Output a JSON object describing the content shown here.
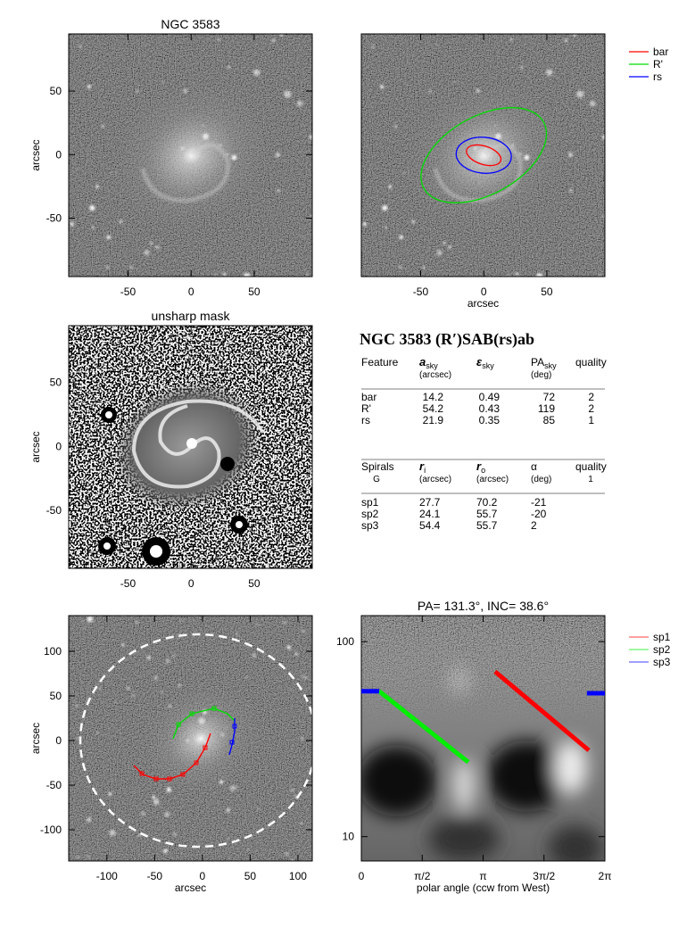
{
  "panels": {
    "top_left": {
      "title": "NGC 3583",
      "ylabel": "arcsec",
      "xlim": [
        -97,
        96
      ],
      "ylim": [
        -96,
        95
      ],
      "xticks": [
        -50,
        0,
        50
      ],
      "yticks": [
        -50,
        0,
        50
      ]
    },
    "top_right": {
      "xlabel": "arcsec",
      "xlim": [
        -97,
        96
      ],
      "xticks": [
        -50,
        0,
        50
      ],
      "legend": [
        {
          "name": "bar",
          "color": "#ff0000"
        },
        {
          "name": "R'",
          "color": "#00dd00"
        },
        {
          "name": "rs",
          "color": "#0000ff"
        }
      ]
    },
    "middle_left": {
      "title": "unsharp mask",
      "ylabel": "arcsec",
      "xlim": [
        -97,
        96
      ],
      "ylim": [
        -95,
        94
      ],
      "xticks": [
        -50,
        0,
        50
      ],
      "yticks": [
        -50,
        0,
        50
      ]
    },
    "bottom_left": {
      "xlabel": "arcsec",
      "ylabel": "arcsec",
      "xlim": [
        -140,
        115
      ],
      "ylim": [
        -135,
        140
      ],
      "xticks": [
        -100,
        -50,
        0,
        50,
        100
      ],
      "yticks": [
        -100,
        -50,
        0,
        50,
        100
      ]
    },
    "bottom_right": {
      "title": "PA= 131.3°, INC=  38.6°",
      "xlabel": "polar angle (ccw from West)",
      "log_y": true,
      "xlim": [
        0,
        6.2832
      ],
      "ylim": [
        7.5,
        136
      ],
      "xticks": [
        0,
        {
          "value": 1.5708,
          "label": "π/2"
        },
        {
          "value": 3.1416,
          "label": "π"
        },
        {
          "value": 4.7124,
          "label": "3π/2"
        },
        {
          "value": 6.2832,
          "label": "2π"
        }
      ],
      "yticks": [
        10,
        100
      ],
      "series": [
        {
          "name": "sp1",
          "color": "#ff0000",
          "theta": [
            3.45,
            5.87
          ],
          "r": [
            70.2,
            27.7
          ]
        },
        {
          "name": "sp2",
          "color": "#00ee00",
          "theta": [
            0.46,
            2.76
          ],
          "r": [
            55.7,
            24.1
          ]
        },
        {
          "name": "sp3",
          "color": "#0000ff",
          "theta": [
            0,
            0.46,
            null,
            5.82,
            6.2832
          ],
          "r": [
            55.7,
            55.7,
            null,
            54.4,
            54.4
          ]
        }
      ]
    }
  },
  "table": {
    "title": "NGC 3583  (R′)SAB(rs)ab",
    "features": {
      "header": [
        {
          "text": "Feature"
        },
        {
          "text": "a",
          "sub": "sky",
          "unit": "(arcsec)"
        },
        {
          "text": "ε",
          "sub": "sky"
        },
        {
          "text": "PA",
          "sub": "sky",
          "unit": "(deg)"
        },
        {
          "text": "quality"
        }
      ],
      "rows": [
        [
          "bar",
          14.2,
          0.49,
          72,
          2
        ],
        [
          "R'",
          54.2,
          0.43,
          119,
          2
        ],
        [
          "rs",
          21.9,
          0.35,
          85,
          1
        ]
      ]
    },
    "spirals": {
      "header": [
        {
          "text": "Spirals",
          "unit": "G"
        },
        {
          "text": "r",
          "sub": "i",
          "unit": "(arcsec)"
        },
        {
          "text": "r",
          "sub": "o",
          "unit": "(arcsec)"
        },
        {
          "text": "α",
          "unit": "(deg)"
        },
        {
          "text": "quality",
          "unit": "1"
        }
      ],
      "rows": [
        [
          "sp1",
          27.7,
          70.2,
          -21
        ],
        [
          "sp2",
          24.1,
          55.7,
          -20
        ],
        [
          "sp3",
          54.4,
          55.7,
          2
        ]
      ]
    }
  }
}
